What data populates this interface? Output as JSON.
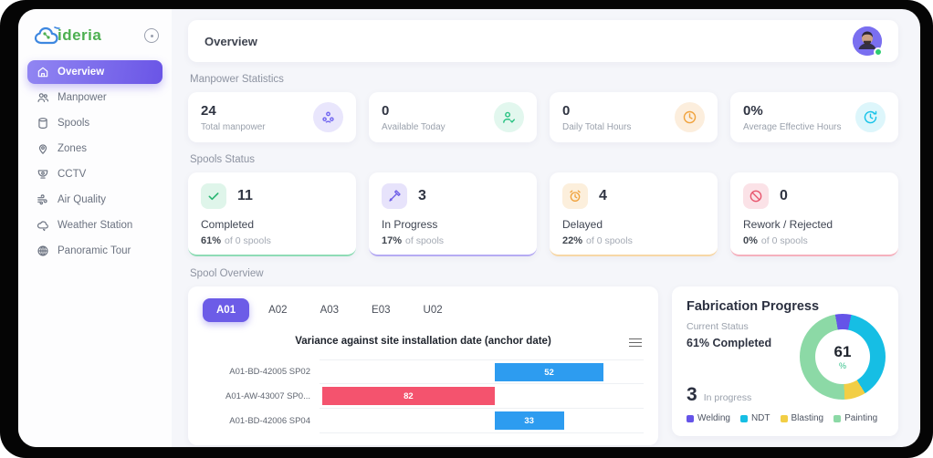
{
  "app": {
    "logo_text": "ideria"
  },
  "sidebar": {
    "items": [
      {
        "label": "Overview",
        "active": true
      },
      {
        "label": "Manpower",
        "active": false
      },
      {
        "label": "Spools",
        "active": false
      },
      {
        "label": "Zones",
        "active": false
      },
      {
        "label": "CCTV",
        "active": false
      },
      {
        "label": "Air Quality",
        "active": false
      },
      {
        "label": "Weather Station",
        "active": false
      },
      {
        "label": "Panoramic Tour",
        "active": false
      }
    ]
  },
  "header": {
    "title": "Overview"
  },
  "manpower": {
    "section_title": "Manpower Statistics",
    "cards": [
      {
        "value": "24",
        "label": "Total manpower",
        "icon": "people-icon",
        "color": "#7166F0",
        "bg": "#E9E6FC"
      },
      {
        "value": "0",
        "label": "Available Today",
        "icon": "person-check-icon",
        "color": "#27C281",
        "bg": "#E2F7EE"
      },
      {
        "value": "0",
        "label": "Daily Total Hours",
        "icon": "clock-icon",
        "color": "#F0A23C",
        "bg": "#FCEEDD"
      },
      {
        "value": "0%",
        "label": "Average Effective Hours",
        "icon": "clock-history-icon",
        "color": "#16C3E8",
        "bg": "#DDF6FB"
      }
    ]
  },
  "spools": {
    "section_title": "Spools Status",
    "cards": [
      {
        "value": "11",
        "label": "Completed",
        "percent": "61%",
        "caption": "of 0 spools",
        "icon": "check-icon",
        "color": "#2BB673",
        "bg": "#DFF5EA",
        "border": "#8fdcb6"
      },
      {
        "value": "3",
        "label": "In Progress",
        "percent": "17%",
        "caption": "of spools",
        "icon": "tool-icon",
        "color": "#6C5CE7",
        "bg": "#E7E3FB",
        "border": "#b6abf3"
      },
      {
        "value": "4",
        "label": "Delayed",
        "percent": "22%",
        "caption": "of 0 spools",
        "icon": "alarm-icon",
        "color": "#F0A23C",
        "bg": "#FCEFDC",
        "border": "#f7d7a6"
      },
      {
        "value": "0",
        "label": "Rework / Rejected",
        "percent": "0%",
        "caption": "of 0 spools",
        "icon": "ban-icon",
        "color": "#E8556D",
        "bg": "#FBE2E7",
        "border": "#f5b0bd"
      }
    ]
  },
  "spool_overview": {
    "section_title": "Spool Overview",
    "tabs": [
      "A01",
      "A02",
      "A03",
      "E03",
      "U02"
    ],
    "active_tab": "A01"
  },
  "chart_data": [
    {
      "type": "bar",
      "orientation": "horizontal-diverging",
      "title": "Variance against site installation date (anchor date)",
      "rows": [
        {
          "label": "A01-BD-42005 SP02",
          "value": 52,
          "display": "52",
          "color": "#2D9CF0"
        },
        {
          "label": "A01-AW-43007 SP0...",
          "value": -82,
          "display": "82",
          "color": "#F4536E"
        },
        {
          "label": "A01-BD-42006 SP04",
          "value": 33,
          "display": "33",
          "color": "#2D9CF0"
        }
      ],
      "zero_axis": "center",
      "legend": "none"
    },
    {
      "type": "pie",
      "title": "Fabrication Progress",
      "center_value": "61",
      "center_unit": "%",
      "start_angle_deg": -10,
      "segments": [
        {
          "name": "Welding",
          "value": 6,
          "color": "#6554E8"
        },
        {
          "name": "NDT",
          "value": 38,
          "color": "#16BEE4"
        },
        {
          "name": "Blasting",
          "value": 8,
          "color": "#F2CE45"
        },
        {
          "name": "Painting",
          "value": 48,
          "color": "#8CD9A6"
        }
      ],
      "legend_position": "bottom"
    }
  ],
  "fabrication": {
    "title": "Fabrication Progress",
    "status_label": "Current Status",
    "status_value": "61% Completed",
    "in_progress_value": "3",
    "in_progress_label": "In progress"
  }
}
